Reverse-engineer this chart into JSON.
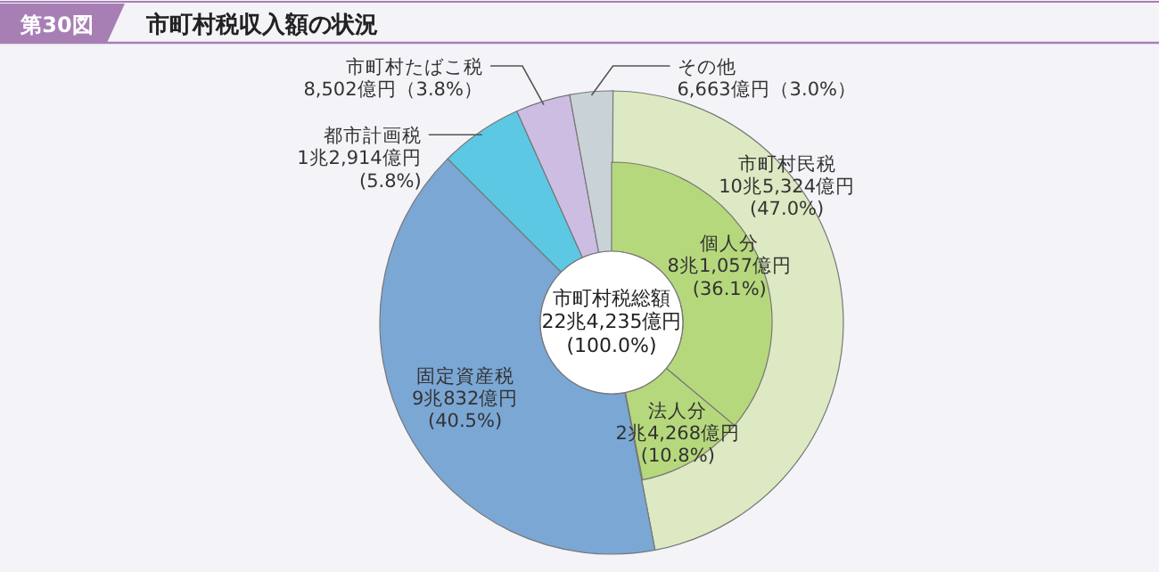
{
  "chart_data": [
    {
      "type": "donut",
      "title": "市町村税収入額の状況",
      "subtitle": "第30図",
      "categories": [
        "市町村民税",
        "固定資産税",
        "都市計画税",
        "市町村たばこ税",
        "その他"
      ],
      "values": [
        47.0,
        40.5,
        5.8,
        3.8,
        3.0
      ],
      "colors": [
        "#dde9c2",
        "#7ba7d4",
        "#5cc8e4",
        "#cdbde3",
        "#c9d2d6"
      ],
      "value_labels": [
        "10兆5,324億円\n(47.0%)",
        "9兆832億円\n(40.5%)",
        "1兆2,914億円\n(5.8%)",
        "8,502億円（3.8%）",
        "6,663億円（3.0%）"
      ],
      "annotations": [
        "市町村税総額\n22兆4,235億円\n(100.0%)"
      ]
    },
    {
      "type": "donut",
      "categories": [
        "個人分",
        "法人分"
      ],
      "values": [
        36.1,
        10.8
      ],
      "colors": [
        "#b6d87c",
        "#b6d87c"
      ],
      "value_labels": [
        "8兆1,057億円\n(36.1%)",
        "2兆4,268億円\n(10.8%)"
      ]
    }
  ]
}
